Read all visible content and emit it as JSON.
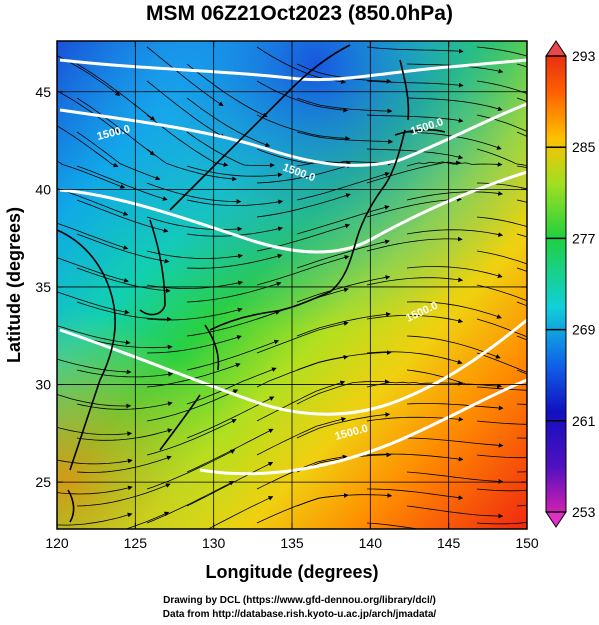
{
  "title": "MSM 06Z21Oct2023 (850.0hPa)",
  "x_axis": {
    "title": "Longitude (degrees)",
    "ticks": [
      "120",
      "125",
      "130",
      "135",
      "140",
      "145",
      "150"
    ]
  },
  "y_axis": {
    "title": "Latitude  (degrees)",
    "ticks": [
      "25",
      "30",
      "35",
      "40",
      "45"
    ]
  },
  "colorbar": {
    "ticks": [
      "293",
      "285",
      "277",
      "269",
      "261",
      "253"
    ],
    "units_range": [
      253,
      293
    ],
    "palette": [
      "#e040c0",
      "#1010b0",
      "#1060e0",
      "#10d0e0",
      "#20d040",
      "#c0e020",
      "#ffa000",
      "#f02000",
      "#e04040"
    ]
  },
  "contour_labels": [
    "1500.0",
    "1500.0",
    "1500.0",
    "1500.0",
    "1500.0"
  ],
  "credits": [
    "Drawing by DCL (https://www.gfd-dennou.org/library/dcl/)",
    "Data from http://database.rish.kyoto-u.ac.jp/arch/jmadata/"
  ],
  "colors": {
    "streamline": "#000000",
    "contour": "#ffffff",
    "coastline": "#000000"
  }
}
